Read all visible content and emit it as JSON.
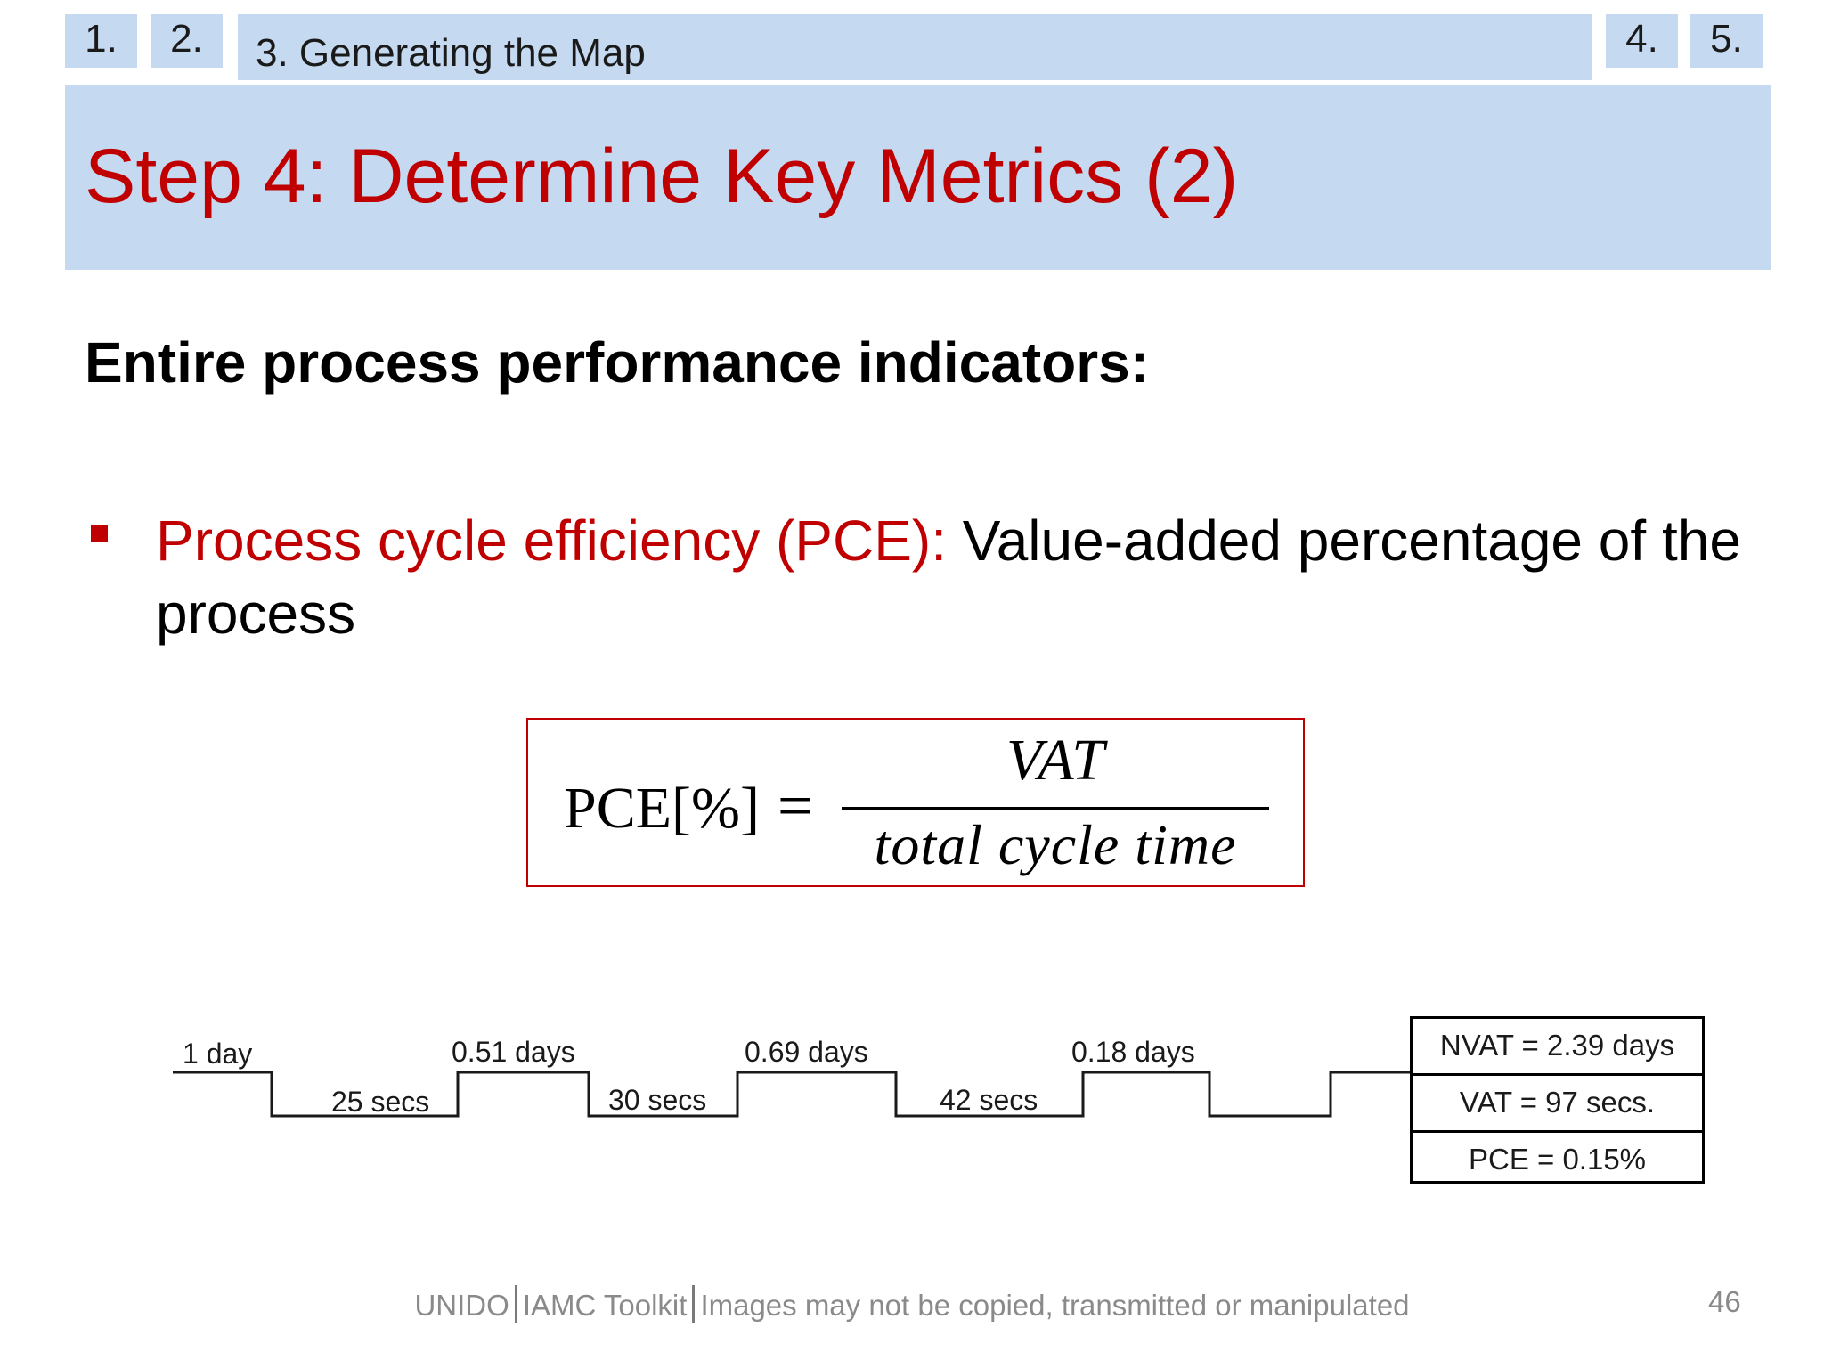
{
  "nav": {
    "tabs": [
      {
        "label": "1."
      },
      {
        "label": "2."
      },
      {
        "label": "3. Generating the Map"
      },
      {
        "label": "4."
      },
      {
        "label": "5."
      }
    ]
  },
  "slide": {
    "title": "Step 4: Determine Key Metrics (2)",
    "subheading": "Entire process performance indicators:",
    "bullet": {
      "term": "Process cycle efficiency (PCE):",
      "text": " Value-added percentage of the process"
    },
    "formula": {
      "lhs": "PCE[%]",
      "equals": "=",
      "numerator": "VAT",
      "denominator": "total cycle time"
    },
    "timeline": {
      "upper_labels": [
        "1 day",
        "0.51 days",
        "0.69 days",
        "0.18 days"
      ],
      "lower_labels": [
        "25 secs",
        "30 secs",
        "42 secs"
      ]
    },
    "metrics": [
      {
        "label": "NVAT = 2.39 days"
      },
      {
        "label": "VAT = 97 secs."
      },
      {
        "label": "PCE = 0.15%"
      }
    ]
  },
  "footer": {
    "org": "UNIDO",
    "toolkit": "IAMC Toolkit",
    "notice": "Images may not be copied, transmitted or manipulated",
    "page_number": "46"
  },
  "colors": {
    "accent_red": "#c00000",
    "band_blue": "#c5d9f0"
  }
}
